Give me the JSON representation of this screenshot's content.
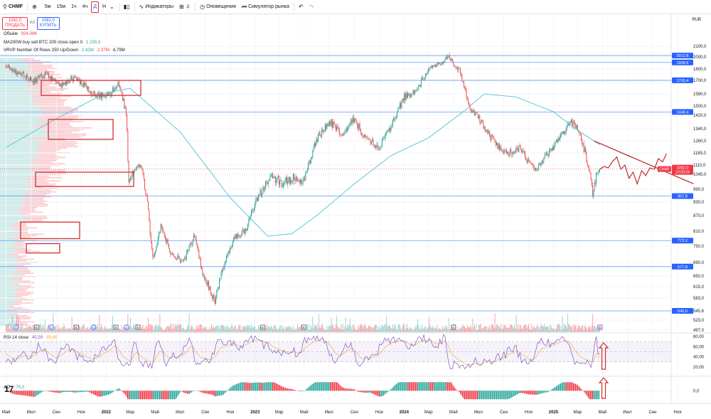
{
  "toolbar": {
    "symbol": "CHMF",
    "timeframes": [
      "5м",
      "15м",
      "1ч",
      "4ч",
      "Д",
      "Н"
    ],
    "active_timeframe": "Д",
    "indicators_label": "Индикаторы",
    "layout_badge": "2",
    "alerts_label": "Оповещения",
    "replay_label": "Симулятор рынка",
    "icons": [
      "search-icon",
      "add-icon",
      "chevron-down-icon",
      "bar-style-icon",
      "indicators-icon",
      "layout-icon",
      "alarm-icon",
      "replay-icon",
      "undo-icon",
      "redo-icon"
    ]
  },
  "trade": {
    "sell_price": "1082,0",
    "sell_label": "ПРОДАТЬ",
    "spread": "0,0",
    "buy_price": "1082,0",
    "buy_label": "КУПИТЬ"
  },
  "legends": {
    "volume": {
      "name": "Объём",
      "value": "924,09K",
      "value_color": "#f23645"
    },
    "ma": {
      "name": "MA200W buy sell BTC 200 close open 0",
      "value": "1 235,5",
      "value_color": "#26a69a"
    },
    "vrvp": {
      "name": "VRVP Number Of Rows 250 Up/Down",
      "values": [
        "2,42M",
        "2,37M",
        "4,79M"
      ],
      "value_colors": [
        "#26a69a",
        "#f23645",
        "#131722"
      ]
    },
    "rsi": {
      "name": "RSI 14 close",
      "values": [
        "45,59",
        "39,80"
      ],
      "value_colors": [
        "#7e57c2",
        "#f5a623"
      ]
    },
    "ao": {
      "name": "AO",
      "value": "−75,0",
      "value_color": "#26a69a"
    }
  },
  "currency": "RUB",
  "chart_data": {
    "type": "candlestick",
    "symbol": "CHMF",
    "interval": "Д",
    "price_scale_labels": [
      "2100,0",
      "2000,0",
      "1800,0",
      "1700,0",
      "1580,0",
      "1500,0",
      "1420,0",
      "1340,0",
      "1260,0",
      "1185,0",
      "1110,0",
      "1045,0",
      "990,0",
      "930,0",
      "870,0",
      "810,0",
      "750,0",
      "690,0",
      "650,0",
      "615,0",
      "583,0",
      "545,6",
      "523,0",
      "497,0"
    ],
    "ylim": [
      497,
      2130
    ],
    "time_labels": [
      "Май",
      "Июл",
      "Сен",
      "Ноя",
      "2022",
      "Мар",
      "Май",
      "Июл",
      "Сен",
      "Ноя",
      "2023",
      "Мар",
      "Май",
      "Июл",
      "Сен",
      "Ноя",
      "2024",
      "Мар",
      "Май",
      "Июл",
      "Сен",
      "Ноя",
      "2025",
      "Мар",
      "Май",
      "Июл",
      "Сен",
      "Ноя"
    ],
    "price_path_approx": [
      [
        "2021-05-01",
        1860
      ],
      [
        "2021-05-20",
        1770
      ],
      [
        "2021-06-15",
        1740
      ],
      [
        "2021-07-10",
        1700
      ],
      [
        "2021-08-05",
        1760
      ],
      [
        "2021-09-10",
        1650
      ],
      [
        "2021-10-10",
        1720
      ],
      [
        "2021-11-10",
        1650
      ],
      [
        "2021-12-10",
        1560
      ],
      [
        "2022-01-10",
        1580
      ],
      [
        "2022-02-01",
        1680
      ],
      [
        "2022-02-20",
        1420
      ],
      [
        "2022-02-25",
        1000
      ],
      [
        "2022-03-10",
        1080
      ],
      [
        "2022-03-25",
        1110
      ],
      [
        "2022-04-10",
        960
      ],
      [
        "2022-04-25",
        700
      ],
      [
        "2022-05-15",
        830
      ],
      [
        "2022-06-10",
        720
      ],
      [
        "2022-07-10",
        690
      ],
      [
        "2022-08-05",
        790
      ],
      [
        "2022-08-25",
        660
      ],
      [
        "2022-09-25",
        570
      ],
      [
        "2022-10-10",
        660
      ],
      [
        "2022-11-10",
        780
      ],
      [
        "2022-12-10",
        820
      ],
      [
        "2023-01-10",
        960
      ],
      [
        "2023-02-10",
        1040
      ],
      [
        "2023-03-10",
        1010
      ],
      [
        "2023-04-01",
        1030
      ],
      [
        "2023-05-01",
        1020
      ],
      [
        "2023-06-01",
        1270
      ],
      [
        "2023-07-01",
        1390
      ],
      [
        "2023-08-01",
        1300
      ],
      [
        "2023-09-01",
        1400
      ],
      [
        "2023-10-01",
        1270
      ],
      [
        "2023-11-01",
        1220
      ],
      [
        "2023-12-01",
        1360
      ],
      [
        "2024-01-01",
        1560
      ],
      [
        "2024-02-01",
        1600
      ],
      [
        "2024-03-01",
        1820
      ],
      [
        "2024-04-01",
        1900
      ],
      [
        "2024-04-20",
        2010
      ],
      [
        "2024-05-01",
        1870
      ],
      [
        "2024-05-15",
        1800
      ],
      [
        "2024-06-10",
        1480
      ],
      [
        "2024-07-10",
        1380
      ],
      [
        "2024-08-10",
        1240
      ],
      [
        "2024-09-10",
        1180
      ],
      [
        "2024-10-10",
        1220
      ],
      [
        "2024-11-01",
        1120
      ],
      [
        "2024-11-20",
        1075
      ],
      [
        "2024-12-10",
        1160
      ],
      [
        "2025-01-10",
        1250
      ],
      [
        "2025-02-10",
        1380
      ],
      [
        "2025-03-01",
        1340
      ],
      [
        "2025-03-20",
        1180
      ],
      [
        "2025-04-07",
        975
      ],
      [
        "2025-04-15",
        1040
      ],
      [
        "2025-04-25",
        1082
      ]
    ],
    "ma200_path_approx": [
      [
        "2021-05-01",
        1220
      ],
      [
        "2021-09-01",
        1400
      ],
      [
        "2022-01-01",
        1590
      ],
      [
        "2022-03-01",
        1630
      ],
      [
        "2022-07-01",
        1320
      ],
      [
        "2022-11-01",
        950
      ],
      [
        "2023-02-01",
        790
      ],
      [
        "2023-04-01",
        800
      ],
      [
        "2023-06-01",
        870
      ],
      [
        "2023-09-01",
        1010
      ],
      [
        "2023-12-01",
        1170
      ],
      [
        "2024-03-01",
        1280
      ],
      [
        "2024-06-01",
        1470
      ],
      [
        "2024-07-15",
        1580
      ],
      [
        "2024-10-01",
        1560
      ],
      [
        "2025-01-01",
        1450
      ],
      [
        "2025-03-01",
        1330
      ],
      [
        "2025-04-25",
        1235.5
      ]
    ],
    "ma200_color": "#5fc7d6",
    "horizontal_levels": [
      {
        "label": "2012,8",
        "value": 2012.8,
        "color": "#2962ff"
      },
      {
        "label": "1908,6",
        "value": 1908.6,
        "color": "#2962ff"
      },
      {
        "label": "1700,4",
        "value": 1700.4,
        "color": "#2962ff"
      },
      {
        "label": "1448,4",
        "value": 1448.4,
        "color": "#2962ff"
      },
      {
        "label": "957,8",
        "value": 957.8,
        "color": "#2962ff"
      },
      {
        "label": "772,2",
        "value": 772.2,
        "color": "#2962ff"
      },
      {
        "label": "677,8",
        "value": 677.8,
        "color": "#2962ff"
      },
      {
        "label": "545,6",
        "value": 545.6,
        "color": "#2962ff"
      }
    ],
    "last_price": {
      "symbol": "CHMF",
      "price": "1082,0",
      "countdown": "10:50:24",
      "value": 1082,
      "color": "#f23645"
    },
    "projection_path": [
      [
        "2025-04-25",
        1082
      ],
      [
        "2025-05-05",
        1100
      ],
      [
        "2025-05-15",
        1090
      ],
      [
        "2025-05-25",
        1130
      ],
      [
        "2025-06-05",
        1160
      ],
      [
        "2025-06-15",
        1080
      ],
      [
        "2025-06-25",
        1110
      ],
      [
        "2025-07-05",
        1030
      ],
      [
        "2025-07-15",
        1060
      ],
      [
        "2025-07-25",
        1010
      ],
      [
        "2025-08-05",
        1070
      ],
      [
        "2025-08-15",
        1040
      ],
      [
        "2025-08-25",
        1090
      ],
      [
        "2025-09-05",
        1080
      ],
      [
        "2025-09-15",
        1150
      ],
      [
        "2025-09-25",
        1130
      ],
      [
        "2025-10-05",
        1180
      ]
    ],
    "projection_color": "#b71c1c",
    "trend_line": {
      "from": [
        "2025-04-10",
        1260
      ],
      "to": [
        "2025-12-10",
        1010
      ],
      "color": "#b71c1c"
    },
    "volume_profile_highlights": [
      {
        "from": 1570,
        "to": 1700
      },
      {
        "from": 1270,
        "to": 1395
      },
      {
        "from": 1000,
        "to": 1060
      },
      {
        "from": 780,
        "to": 845
      },
      {
        "from": 725,
        "to": 760
      }
    ],
    "highlight_color": "#d32f2f",
    "event_markers": [
      {
        "date": "2021-05-25",
        "label": "D"
      },
      {
        "date": "2021-07-15",
        "label": "E"
      },
      {
        "date": "2021-08-20",
        "label": "D"
      },
      {
        "date": "2021-10-20",
        "label": "E"
      },
      {
        "date": "2021-12-01",
        "label": "D"
      },
      {
        "date": "2022-01-25",
        "label": "E"
      },
      {
        "date": "2022-02-20",
        "label": "D"
      },
      {
        "date": "2022-03-20",
        "label": "E"
      },
      {
        "date": "2023-01-20",
        "label": "E"
      },
      {
        "date": "2023-05-01",
        "label": "E"
      },
      {
        "date": "2024-05-01",
        "label": "E"
      },
      {
        "date": "2025-04-25",
        "label": "E"
      }
    ],
    "rsi": {
      "name": "RSI 14 close",
      "last": 45.59,
      "signal_last": 39.8,
      "scale_labels": [
        "80,00",
        "60,00",
        "40,00",
        "20,00"
      ],
      "band": [
        30,
        70
      ],
      "line_color": "#7e57c2",
      "signal_color": "#f5a623"
    },
    "ao": {
      "name": "AO",
      "last": -75.0,
      "scale_labels": [
        "0,0"
      ],
      "up_color": "#26a69a",
      "down_color": "#f23645"
    }
  }
}
